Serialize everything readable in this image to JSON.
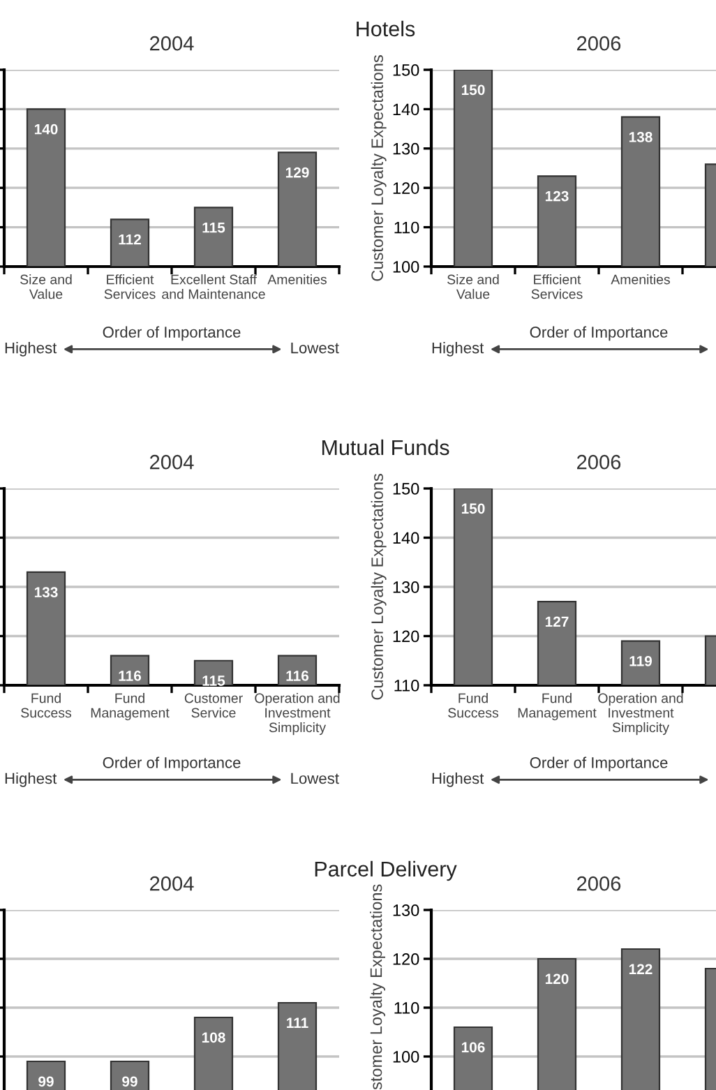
{
  "chart_data": [
    {
      "type": "bar",
      "title": "2004",
      "categories": [
        "Size and\nValue",
        "Efficient\nServices",
        "Excellent Staff\nand Maintenance",
        "Amenities"
      ],
      "values": [
        140,
        112,
        115,
        129
      ],
      "value_labels": [
        "140",
        "112",
        "115",
        "129"
      ],
      "color": "#737373",
      "ylim": [
        100,
        150
      ],
      "yticks": [
        {
          "value": 100,
          "label": null
        },
        {
          "value": 110,
          "label": null
        },
        {
          "value": 120,
          "label": null
        },
        {
          "value": 130,
          "label": null
        },
        {
          "value": 140,
          "label": null
        },
        {
          "value": 150,
          "label": null
        }
      ],
      "grid": "y",
      "tick_labels": "x",
      "annotations": [
        "Order of Importance",
        "Highest",
        "Lowest"
      ]
    },
    {
      "type": "bar",
      "title": "2006",
      "subtitle": "Hotels",
      "ylabel": "Customer Loyalty Expectations",
      "categories": [
        "Size and\nValue",
        "Efficient\nServices",
        "Amenities",
        null
      ],
      "values": [
        150,
        123,
        138,
        126
      ],
      "value_labels": [
        "150",
        "123",
        "138",
        null
      ],
      "color": "#737373",
      "ylim": [
        100,
        150
      ],
      "yticks": [
        100,
        110,
        120,
        130,
        140,
        150
      ],
      "grid": "y",
      "annotations": [
        "Order of Importance",
        "Highest"
      ]
    },
    {
      "type": "bar",
      "title": "2004",
      "categories": [
        "Fund\nSuccess",
        "Fund\nManagement",
        "Customer\nService",
        "Operation and\nInvestment\nSimplicity"
      ],
      "values": [
        133,
        116,
        115,
        116
      ],
      "value_labels": [
        "133",
        "116",
        "115",
        "116"
      ],
      "color": "#737373",
      "ylim": [
        110,
        150
      ],
      "yticks": [
        {
          "value": 110,
          "label": null
        },
        {
          "value": 120,
          "label": null
        },
        {
          "value": 130,
          "label": null
        },
        {
          "value": 140,
          "label": null
        },
        {
          "value": 150,
          "label": null
        }
      ],
      "grid": "y",
      "tick_labels": "x",
      "annotations": [
        "Order of Importance",
        "Highest",
        "Lowest"
      ]
    },
    {
      "type": "bar",
      "title": "2006",
      "subtitle": "Mutual Funds",
      "ylabel": "Customer Loyalty Expectations",
      "categories": [
        "Fund\nSuccess",
        "Fund\nManagement",
        "Operation and\nInvestment\nSimplicity",
        null
      ],
      "values": [
        150,
        127,
        119,
        120
      ],
      "value_labels": [
        "150",
        "127",
        "119",
        null
      ],
      "color": "#737373",
      "ylim": [
        110,
        150
      ],
      "yticks": [
        110,
        120,
        130,
        140,
        150
      ],
      "grid": "y",
      "annotations": [
        "Order of Importance",
        "Highest"
      ]
    },
    {
      "type": "bar",
      "title": "2004",
      "categories": [
        null,
        null,
        null,
        null
      ],
      "values": [
        99,
        99,
        108,
        111
      ],
      "value_labels": [
        "99",
        "99",
        "108",
        "111"
      ],
      "color": "#737373",
      "ylim": [
        90,
        130
      ],
      "yticks": [
        {
          "value": 100,
          "label": null
        },
        {
          "value": 110,
          "label": null
        },
        {
          "value": 120,
          "label": null
        },
        {
          "value": 130,
          "label": null
        }
      ],
      "grid": "y",
      "tick_labels": false
    },
    {
      "type": "bar",
      "title": "2006",
      "subtitle": "Parcel Delivery",
      "ylabel": "stomer Loyalty Expectations",
      "categories": [
        null,
        null,
        null,
        null
      ],
      "values": [
        106,
        120,
        122,
        118
      ],
      "value_labels": [
        "106",
        "120",
        "122",
        null
      ],
      "color": "#737373",
      "ylim": [
        90,
        130
      ],
      "yticks": [
        100,
        110,
        120,
        130
      ],
      "grid": "y",
      "tick_labels": "y"
    }
  ]
}
